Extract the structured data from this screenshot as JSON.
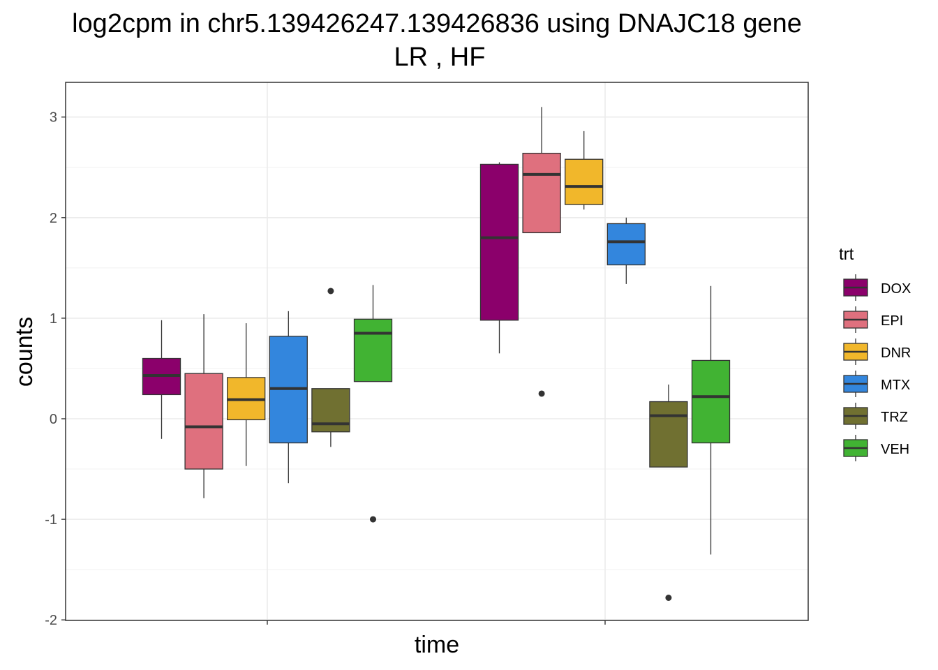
{
  "chart_data": {
    "type": "boxplot",
    "title_line1": "log2cpm in  chr5.139426247.139426836  using  DNAJC18  gene",
    "title_line2": "LR ,  HF",
    "xlabel": "time",
    "ylabel": "counts",
    "ylim": [
      -2.0,
      3.3
    ],
    "yticks": [
      -2,
      -1,
      0,
      1,
      2,
      3
    ],
    "x_groups": [
      "",
      ""
    ],
    "legend": {
      "title": "trt",
      "placement": "right",
      "entries": [
        {
          "name": "DOX",
          "color": "#8B006B"
        },
        {
          "name": "EPI",
          "color": "#DF707E"
        },
        {
          "name": "DNR",
          "color": "#F1B72B"
        },
        {
          "name": "MTX",
          "color": "#3386DD"
        },
        {
          "name": "TRZ",
          "color": "#707031"
        },
        {
          "name": "VEH",
          "color": "#41B333"
        }
      ]
    },
    "series": [
      {
        "name": "DOX",
        "color": "#8B006B",
        "boxes": [
          {
            "group": 0,
            "min": -0.2,
            "q1": 0.24,
            "median": 0.43,
            "q3": 0.6,
            "max": 0.98,
            "outliers": []
          },
          {
            "group": 1,
            "min": 0.65,
            "q1": 0.98,
            "median": 1.8,
            "q3": 2.53,
            "max": 2.55,
            "outliers": []
          }
        ]
      },
      {
        "name": "EPI",
        "color": "#DF707E",
        "boxes": [
          {
            "group": 0,
            "min": -0.79,
            "q1": -0.5,
            "median": -0.08,
            "q3": 0.45,
            "max": 1.04,
            "outliers": []
          },
          {
            "group": 1,
            "min": 1.85,
            "q1": 1.85,
            "median": 2.43,
            "q3": 2.64,
            "max": 3.1,
            "outliers": [
              0.25
            ]
          }
        ]
      },
      {
        "name": "DNR",
        "color": "#F1B72B",
        "boxes": [
          {
            "group": 0,
            "min": -0.47,
            "q1": -0.01,
            "median": 0.19,
            "q3": 0.41,
            "max": 0.95,
            "outliers": []
          },
          {
            "group": 1,
            "min": 2.08,
            "q1": 2.13,
            "median": 2.31,
            "q3": 2.58,
            "max": 2.86,
            "outliers": []
          }
        ]
      },
      {
        "name": "MTX",
        "color": "#3386DD",
        "boxes": [
          {
            "group": 0,
            "min": -0.64,
            "q1": -0.24,
            "median": 0.3,
            "q3": 0.82,
            "max": 1.07,
            "outliers": []
          },
          {
            "group": 1,
            "min": 1.34,
            "q1": 1.53,
            "median": 1.76,
            "q3": 1.94,
            "max": 2.0,
            "outliers": []
          }
        ]
      },
      {
        "name": "TRZ",
        "color": "#707031",
        "boxes": [
          {
            "group": 0,
            "min": -0.28,
            "q1": -0.13,
            "median": -0.05,
            "q3": 0.3,
            "max": 0.3,
            "outliers": [
              1.27
            ]
          },
          {
            "group": 1,
            "min": -0.48,
            "q1": -0.48,
            "median": 0.03,
            "q3": 0.17,
            "max": 0.34,
            "outliers": [
              -1.78
            ]
          }
        ]
      },
      {
        "name": "VEH",
        "color": "#41B333",
        "boxes": [
          {
            "group": 0,
            "min": 0.37,
            "q1": 0.37,
            "median": 0.85,
            "q3": 0.99,
            "max": 1.33,
            "outliers": [
              -1.0
            ]
          },
          {
            "group": 1,
            "min": -1.35,
            "q1": -0.24,
            "median": 0.22,
            "q3": 0.58,
            "max": 1.32,
            "outliers": []
          }
        ]
      }
    ]
  }
}
